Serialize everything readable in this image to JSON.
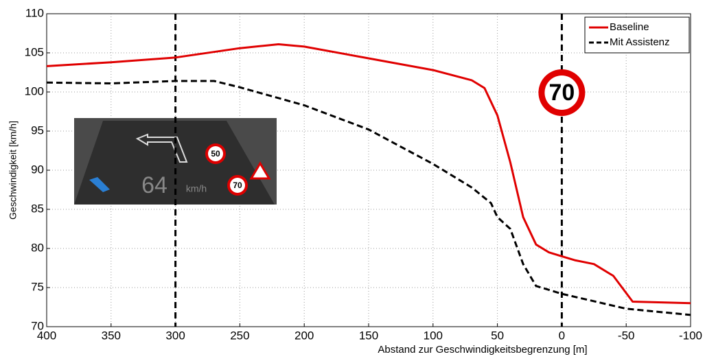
{
  "chart_data": {
    "type": "line",
    "xlabel": "Abstand zur Geschwindigkeitsbegrenzung [m]",
    "ylabel": "Geschwindigkeit [km/h]",
    "xlim": [
      400,
      -100
    ],
    "ylim": [
      70,
      110
    ],
    "xticks": [
      400,
      350,
      300,
      250,
      200,
      150,
      100,
      50,
      0,
      -50,
      -100
    ],
    "yticks": [
      70,
      75,
      80,
      85,
      90,
      95,
      100,
      105,
      110
    ],
    "grid": true,
    "legend": "upper right",
    "vlines": [
      300,
      0
    ],
    "sign_label": "70",
    "inset": {
      "speed": "64",
      "unit": "km/h",
      "signs": [
        "50",
        "70"
      ]
    },
    "series": [
      {
        "name": "Baseline",
        "color": "#e00000",
        "linestyle": "solid",
        "x": [
          400,
          350,
          300,
          250,
          220,
          200,
          150,
          100,
          70,
          60,
          50,
          40,
          30,
          20,
          10,
          0,
          -10,
          -25,
          -40,
          -55,
          -100
        ],
        "values": [
          103.3,
          103.8,
          104.4,
          105.6,
          106.1,
          105.8,
          104.3,
          102.8,
          101.5,
          100.5,
          97,
          91,
          84,
          80.5,
          79.5,
          79,
          78.5,
          78,
          76.5,
          73.2,
          73
        ]
      },
      {
        "name": "Mit Assistenz",
        "color": "#000000",
        "linestyle": "dashed",
        "x": [
          400,
          350,
          300,
          270,
          250,
          200,
          150,
          100,
          70,
          55,
          50,
          40,
          30,
          20,
          0,
          -50,
          -100
        ],
        "values": [
          101.2,
          101.1,
          101.4,
          101.4,
          100.6,
          98.3,
          95.2,
          90.8,
          87.8,
          85.8,
          84,
          82.5,
          78,
          75.2,
          74.2,
          72.3,
          71.5
        ]
      }
    ]
  }
}
